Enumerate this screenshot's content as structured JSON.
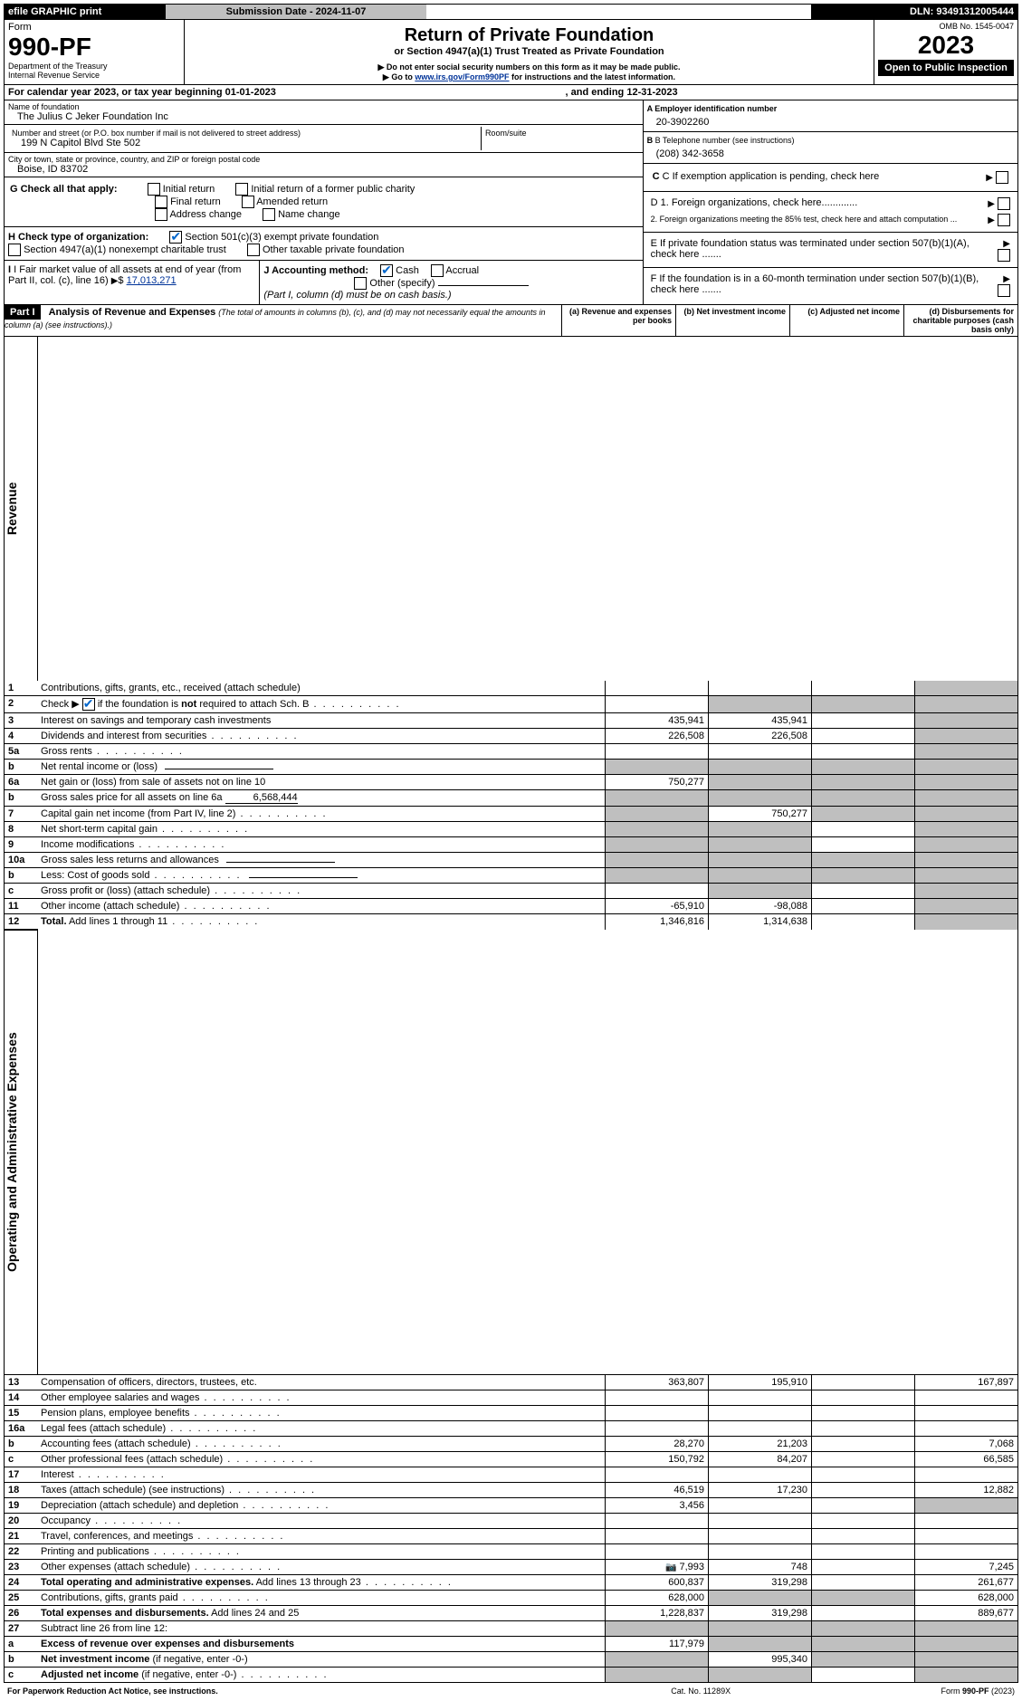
{
  "hdr": {
    "efile": "efile GRAPHIC print",
    "sub_label": "Submission Date - 2024-11-07",
    "dln": "DLN: 93491312005444",
    "omb": "OMB No. 1545-0047",
    "form_word": "Form",
    "form_num": "990-PF",
    "dept": "Department of the Treasury",
    "irs": "Internal Revenue Service",
    "title": "Return of Private Foundation",
    "subtitle": "or Section 4947(a)(1) Trust Treated as Private Foundation",
    "note1": "▶ Do not enter social security numbers on this form as it may be made public.",
    "note2_pre": "▶ Go to ",
    "note2_link": "www.irs.gov/Form990PF",
    "note2_post": " for instructions and the latest information.",
    "year": "2023",
    "open": "Open to Public Inspection"
  },
  "cal": {
    "line": "For calendar year 2023, or tax year beginning 01-01-2023",
    "mid": ", and ending 12-31-2023"
  },
  "entity": {
    "name_lbl": "Name of foundation",
    "name": "The Julius C Jeker Foundation Inc",
    "addr_lbl": "Number and street (or P.O. box number if mail is not delivered to street address)",
    "addr": "199 N Capitol Blvd Ste 502",
    "room_lbl": "Room/suite",
    "city_lbl": "City or town, state or province, country, and ZIP or foreign postal code",
    "city": "Boise, ID  83702",
    "a_lbl": "A Employer identification number",
    "a_val": "20-3902260",
    "b_lbl": "B Telephone number (see instructions)",
    "b_val": "(208) 342-3658",
    "c_lbl": "C If exemption application is pending, check here",
    "d1": "D 1. Foreign organizations, check here.............",
    "d2": "2. Foreign organizations meeting the 85% test, check here and attach computation ...",
    "e": "E  If private foundation status was terminated under section 507(b)(1)(A), check here .......",
    "f": "F  If the foundation is in a 60-month termination under section 507(b)(1)(B), check here .......",
    "g_lbl": "G Check all that apply:",
    "g_opts": [
      "Initial return",
      "Initial return of a former public charity",
      "Final return",
      "Amended return",
      "Address change",
      "Name change"
    ],
    "h_lbl": "H Check type of organization:",
    "h_opts": [
      "Section 501(c)(3) exempt private foundation",
      "Section 4947(a)(1) nonexempt charitable trust",
      "Other taxable private foundation"
    ],
    "i_lbl": "I Fair market value of all assets at end of year (from Part II, col. (c), line 16)",
    "i_val": "17,013,271",
    "j_lbl": "J Accounting method:",
    "j_opts": [
      "Cash",
      "Accrual",
      "Other (specify)"
    ],
    "j_note": "(Part I, column (d) must be on cash basis.)"
  },
  "part1": {
    "label": "Part I",
    "title": "Analysis of Revenue and Expenses",
    "title_note": " (The total of amounts in columns (b), (c), and (d) may not necessarily equal the amounts in column (a) (see instructions).)",
    "cols": {
      "a": "(a)   Revenue and expenses per books",
      "b": "(b)   Net investment income",
      "c": "(c)   Adjusted net income",
      "d": "(d)   Disbursements for charitable purposes (cash basis only)"
    },
    "side_rev": "Revenue",
    "side_exp": "Operating and Administrative Expenses"
  },
  "rows": [
    {
      "n": "1",
      "t": "Contributions, gifts, grants, etc., received (attach schedule)",
      "a": "",
      "b": "",
      "c": "",
      "d": "",
      "sd": true
    },
    {
      "n": "2",
      "t_html": "Check ▶ [CK] if the foundation is <b>not</b> required to attach Sch. B",
      "dots": true,
      "a": "",
      "b": "",
      "c": "",
      "d": "",
      "sb": true,
      "sc": true,
      "sd": true
    },
    {
      "n": "3",
      "t": "Interest on savings and temporary cash investments",
      "a": "435,941",
      "b": "435,941",
      "c": "",
      "d": "",
      "sd": true
    },
    {
      "n": "4",
      "t": "Dividends and interest from securities",
      "dots": true,
      "a": "226,508",
      "b": "226,508",
      "c": "",
      "d": "",
      "sd": true
    },
    {
      "n": "5a",
      "t": "Gross rents",
      "dots": true,
      "a": "",
      "b": "",
      "c": "",
      "d": "",
      "sd": true
    },
    {
      "n": "b",
      "t": "Net rental income or (loss)",
      "blank_after": true,
      "a": "",
      "b": "",
      "c": "",
      "d": "",
      "sa": true,
      "sb": true,
      "sc": true,
      "sd": true
    },
    {
      "n": "6a",
      "t": "Net gain or (loss) from sale of assets not on line 10",
      "a": "750,277",
      "b": "",
      "c": "",
      "d": "",
      "sb": true,
      "sc": true,
      "sd": true
    },
    {
      "n": "b",
      "t_html": "Gross sales price for all assets on line 6a <span class='underline-val right' style='min-width:80px'>6,568,444</span>",
      "a": "",
      "b": "",
      "c": "",
      "d": "",
      "sa": true,
      "sb": true,
      "sc": true,
      "sd": true
    },
    {
      "n": "7",
      "t": "Capital gain net income (from Part IV, line 2)",
      "dots": true,
      "a": "",
      "b": "750,277",
      "c": "",
      "d": "",
      "sa": true,
      "sc": true,
      "sd": true
    },
    {
      "n": "8",
      "t": "Net short-term capital gain",
      "dots": true,
      "a": "",
      "b": "",
      "c": "",
      "d": "",
      "sa": true,
      "sb": true,
      "sd": true
    },
    {
      "n": "9",
      "t": "Income modifications",
      "dots": true,
      "a": "",
      "b": "",
      "c": "",
      "d": "",
      "sa": true,
      "sb": true,
      "sd": true
    },
    {
      "n": "10a",
      "t": "Gross sales less returns and allowances",
      "blank_after": true,
      "a": "",
      "b": "",
      "c": "",
      "d": "",
      "sa": true,
      "sb": true,
      "sc": true,
      "sd": true
    },
    {
      "n": "b",
      "t": "Less: Cost of goods sold",
      "dots": true,
      "blank_after": true,
      "a": "",
      "b": "",
      "c": "",
      "d": "",
      "sa": true,
      "sb": true,
      "sc": true,
      "sd": true
    },
    {
      "n": "c",
      "t": "Gross profit or (loss) (attach schedule)",
      "dots": true,
      "a": "",
      "b": "",
      "c": "",
      "d": "",
      "sb": true,
      "sd": true
    },
    {
      "n": "11",
      "t": "Other income (attach schedule)",
      "dots": true,
      "a": "-65,910",
      "b": "-98,088",
      "c": "",
      "d": "",
      "sd": true
    },
    {
      "n": "12",
      "t": "<b>Total.</b> Add lines 1 through 11",
      "dots": true,
      "a": "1,346,816",
      "b": "1,314,638",
      "c": "",
      "d": "",
      "sd": true,
      "bold": true
    },
    {
      "n": "13",
      "t": "Compensation of officers, directors, trustees, etc.",
      "a": "363,807",
      "b": "195,910",
      "c": "",
      "d": "167,897"
    },
    {
      "n": "14",
      "t": "Other employee salaries and wages",
      "dots": true,
      "a": "",
      "b": "",
      "c": "",
      "d": ""
    },
    {
      "n": "15",
      "t": "Pension plans, employee benefits",
      "dots": true,
      "a": "",
      "b": "",
      "c": "",
      "d": ""
    },
    {
      "n": "16a",
      "t": "Legal fees (attach schedule)",
      "dots": true,
      "a": "",
      "b": "",
      "c": "",
      "d": ""
    },
    {
      "n": "b",
      "t": "Accounting fees (attach schedule)",
      "dots": true,
      "a": "28,270",
      "b": "21,203",
      "c": "",
      "d": "7,068"
    },
    {
      "n": "c",
      "t": "Other professional fees (attach schedule)",
      "dots": true,
      "a": "150,792",
      "b": "84,207",
      "c": "",
      "d": "66,585"
    },
    {
      "n": "17",
      "t": "Interest",
      "dots": true,
      "a": "",
      "b": "",
      "c": "",
      "d": ""
    },
    {
      "n": "18",
      "t": "Taxes (attach schedule) (see instructions)",
      "dots": true,
      "a": "46,519",
      "b": "17,230",
      "c": "",
      "d": "12,882"
    },
    {
      "n": "19",
      "t": "Depreciation (attach schedule) and depletion",
      "dots": true,
      "a": "3,456",
      "b": "",
      "c": "",
      "d": "",
      "sd": true
    },
    {
      "n": "20",
      "t": "Occupancy",
      "dots": true,
      "a": "",
      "b": "",
      "c": "",
      "d": ""
    },
    {
      "n": "21",
      "t": "Travel, conferences, and meetings",
      "dots": true,
      "a": "",
      "b": "",
      "c": "",
      "d": ""
    },
    {
      "n": "22",
      "t": "Printing and publications",
      "dots": true,
      "a": "",
      "b": "",
      "c": "",
      "d": ""
    },
    {
      "n": "23",
      "t": "Other expenses (attach schedule)",
      "dots": true,
      "icon": true,
      "a": "7,993",
      "b": "748",
      "c": "",
      "d": "7,245"
    },
    {
      "n": "24",
      "t": "<b>Total operating and administrative expenses.</b> Add lines 13 through 23",
      "dots": true,
      "a": "600,837",
      "b": "319,298",
      "c": "",
      "d": "261,677"
    },
    {
      "n": "25",
      "t": "Contributions, gifts, grants paid",
      "dots": true,
      "a": "628,000",
      "b": "",
      "c": "",
      "d": "628,000",
      "sb": true,
      "sc": true
    },
    {
      "n": "26",
      "t": "<b>Total expenses and disbursements.</b> Add lines 24 and 25",
      "a": "1,228,837",
      "b": "319,298",
      "c": "",
      "d": "889,677"
    },
    {
      "n": "27",
      "t": "Subtract line 26 from line 12:",
      "a": "",
      "b": "",
      "c": "",
      "d": "",
      "sa": true,
      "sb": true,
      "sc": true,
      "sd": true
    },
    {
      "n": "a",
      "t": "<b>Excess of revenue over expenses and disbursements</b>",
      "a": "117,979",
      "b": "",
      "c": "",
      "d": "",
      "sb": true,
      "sc": true,
      "sd": true
    },
    {
      "n": "b",
      "t": "<b>Net investment income</b> (if negative, enter -0-)",
      "a": "",
      "b": "995,340",
      "c": "",
      "d": "",
      "sa": true,
      "sc": true,
      "sd": true
    },
    {
      "n": "c",
      "t": "<b>Adjusted net income</b> (if negative, enter -0-)",
      "dots": true,
      "a": "",
      "b": "",
      "c": "",
      "d": "",
      "sa": true,
      "sb": true,
      "sd": true
    }
  ],
  "ftr": {
    "left": "For Paperwork Reduction Act Notice, see instructions.",
    "mid": "Cat. No. 11289X",
    "right": "Form 990-PF (2023)"
  }
}
